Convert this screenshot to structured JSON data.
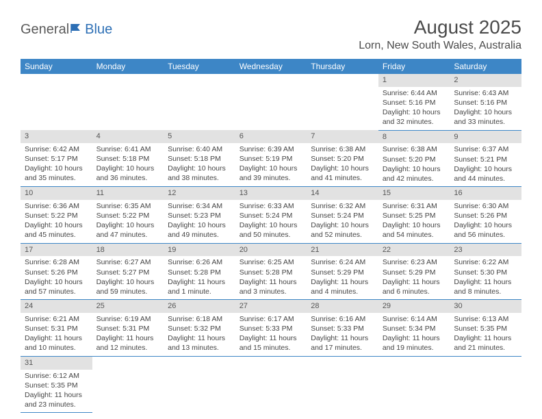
{
  "logo": {
    "general": "General",
    "blue": "Blue"
  },
  "title": "August 2025",
  "location": "Lorn, New South Wales, Australia",
  "colors": {
    "header_bg": "#3d86c6",
    "header_text": "#ffffff",
    "daynum_bg": "#e2e2e2",
    "row_border": "#3d86c6",
    "text": "#444444"
  },
  "days_of_week": [
    "Sunday",
    "Monday",
    "Tuesday",
    "Wednesday",
    "Thursday",
    "Friday",
    "Saturday"
  ],
  "weeks": [
    [
      {
        "n": "",
        "sr": "",
        "ss": "",
        "dl": ""
      },
      {
        "n": "",
        "sr": "",
        "ss": "",
        "dl": ""
      },
      {
        "n": "",
        "sr": "",
        "ss": "",
        "dl": ""
      },
      {
        "n": "",
        "sr": "",
        "ss": "",
        "dl": ""
      },
      {
        "n": "",
        "sr": "",
        "ss": "",
        "dl": ""
      },
      {
        "n": "1",
        "sr": "Sunrise: 6:44 AM",
        "ss": "Sunset: 5:16 PM",
        "dl": "Daylight: 10 hours and 32 minutes."
      },
      {
        "n": "2",
        "sr": "Sunrise: 6:43 AM",
        "ss": "Sunset: 5:16 PM",
        "dl": "Daylight: 10 hours and 33 minutes."
      }
    ],
    [
      {
        "n": "3",
        "sr": "Sunrise: 6:42 AM",
        "ss": "Sunset: 5:17 PM",
        "dl": "Daylight: 10 hours and 35 minutes."
      },
      {
        "n": "4",
        "sr": "Sunrise: 6:41 AM",
        "ss": "Sunset: 5:18 PM",
        "dl": "Daylight: 10 hours and 36 minutes."
      },
      {
        "n": "5",
        "sr": "Sunrise: 6:40 AM",
        "ss": "Sunset: 5:18 PM",
        "dl": "Daylight: 10 hours and 38 minutes."
      },
      {
        "n": "6",
        "sr": "Sunrise: 6:39 AM",
        "ss": "Sunset: 5:19 PM",
        "dl": "Daylight: 10 hours and 39 minutes."
      },
      {
        "n": "7",
        "sr": "Sunrise: 6:38 AM",
        "ss": "Sunset: 5:20 PM",
        "dl": "Daylight: 10 hours and 41 minutes."
      },
      {
        "n": "8",
        "sr": "Sunrise: 6:38 AM",
        "ss": "Sunset: 5:20 PM",
        "dl": "Daylight: 10 hours and 42 minutes."
      },
      {
        "n": "9",
        "sr": "Sunrise: 6:37 AM",
        "ss": "Sunset: 5:21 PM",
        "dl": "Daylight: 10 hours and 44 minutes."
      }
    ],
    [
      {
        "n": "10",
        "sr": "Sunrise: 6:36 AM",
        "ss": "Sunset: 5:22 PM",
        "dl": "Daylight: 10 hours and 45 minutes."
      },
      {
        "n": "11",
        "sr": "Sunrise: 6:35 AM",
        "ss": "Sunset: 5:22 PM",
        "dl": "Daylight: 10 hours and 47 minutes."
      },
      {
        "n": "12",
        "sr": "Sunrise: 6:34 AM",
        "ss": "Sunset: 5:23 PM",
        "dl": "Daylight: 10 hours and 49 minutes."
      },
      {
        "n": "13",
        "sr": "Sunrise: 6:33 AM",
        "ss": "Sunset: 5:24 PM",
        "dl": "Daylight: 10 hours and 50 minutes."
      },
      {
        "n": "14",
        "sr": "Sunrise: 6:32 AM",
        "ss": "Sunset: 5:24 PM",
        "dl": "Daylight: 10 hours and 52 minutes."
      },
      {
        "n": "15",
        "sr": "Sunrise: 6:31 AM",
        "ss": "Sunset: 5:25 PM",
        "dl": "Daylight: 10 hours and 54 minutes."
      },
      {
        "n": "16",
        "sr": "Sunrise: 6:30 AM",
        "ss": "Sunset: 5:26 PM",
        "dl": "Daylight: 10 hours and 56 minutes."
      }
    ],
    [
      {
        "n": "17",
        "sr": "Sunrise: 6:28 AM",
        "ss": "Sunset: 5:26 PM",
        "dl": "Daylight: 10 hours and 57 minutes."
      },
      {
        "n": "18",
        "sr": "Sunrise: 6:27 AM",
        "ss": "Sunset: 5:27 PM",
        "dl": "Daylight: 10 hours and 59 minutes."
      },
      {
        "n": "19",
        "sr": "Sunrise: 6:26 AM",
        "ss": "Sunset: 5:28 PM",
        "dl": "Daylight: 11 hours and 1 minute."
      },
      {
        "n": "20",
        "sr": "Sunrise: 6:25 AM",
        "ss": "Sunset: 5:28 PM",
        "dl": "Daylight: 11 hours and 3 minutes."
      },
      {
        "n": "21",
        "sr": "Sunrise: 6:24 AM",
        "ss": "Sunset: 5:29 PM",
        "dl": "Daylight: 11 hours and 4 minutes."
      },
      {
        "n": "22",
        "sr": "Sunrise: 6:23 AM",
        "ss": "Sunset: 5:29 PM",
        "dl": "Daylight: 11 hours and 6 minutes."
      },
      {
        "n": "23",
        "sr": "Sunrise: 6:22 AM",
        "ss": "Sunset: 5:30 PM",
        "dl": "Daylight: 11 hours and 8 minutes."
      }
    ],
    [
      {
        "n": "24",
        "sr": "Sunrise: 6:21 AM",
        "ss": "Sunset: 5:31 PM",
        "dl": "Daylight: 11 hours and 10 minutes."
      },
      {
        "n": "25",
        "sr": "Sunrise: 6:19 AM",
        "ss": "Sunset: 5:31 PM",
        "dl": "Daylight: 11 hours and 12 minutes."
      },
      {
        "n": "26",
        "sr": "Sunrise: 6:18 AM",
        "ss": "Sunset: 5:32 PM",
        "dl": "Daylight: 11 hours and 13 minutes."
      },
      {
        "n": "27",
        "sr": "Sunrise: 6:17 AM",
        "ss": "Sunset: 5:33 PM",
        "dl": "Daylight: 11 hours and 15 minutes."
      },
      {
        "n": "28",
        "sr": "Sunrise: 6:16 AM",
        "ss": "Sunset: 5:33 PM",
        "dl": "Daylight: 11 hours and 17 minutes."
      },
      {
        "n": "29",
        "sr": "Sunrise: 6:14 AM",
        "ss": "Sunset: 5:34 PM",
        "dl": "Daylight: 11 hours and 19 minutes."
      },
      {
        "n": "30",
        "sr": "Sunrise: 6:13 AM",
        "ss": "Sunset: 5:35 PM",
        "dl": "Daylight: 11 hours and 21 minutes."
      }
    ],
    [
      {
        "n": "31",
        "sr": "Sunrise: 6:12 AM",
        "ss": "Sunset: 5:35 PM",
        "dl": "Daylight: 11 hours and 23 minutes."
      },
      {
        "n": "",
        "sr": "",
        "ss": "",
        "dl": ""
      },
      {
        "n": "",
        "sr": "",
        "ss": "",
        "dl": ""
      },
      {
        "n": "",
        "sr": "",
        "ss": "",
        "dl": ""
      },
      {
        "n": "",
        "sr": "",
        "ss": "",
        "dl": ""
      },
      {
        "n": "",
        "sr": "",
        "ss": "",
        "dl": ""
      },
      {
        "n": "",
        "sr": "",
        "ss": "",
        "dl": ""
      }
    ]
  ]
}
